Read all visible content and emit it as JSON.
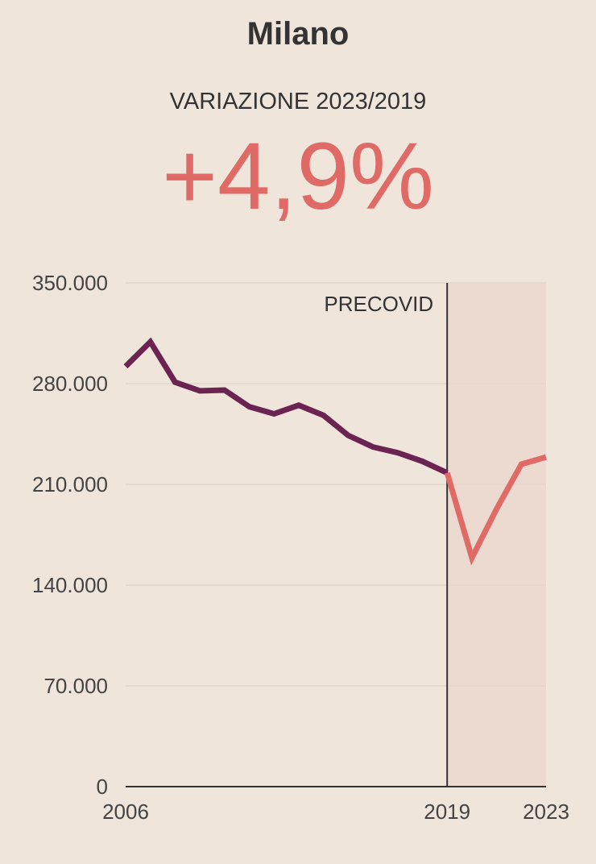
{
  "header": {
    "title": "Milano",
    "subtitle": "VARIAZIONE 2023/2019",
    "change_value": "+4,9%"
  },
  "colors": {
    "background": "#efe5da",
    "precovid_line": "#6b2452",
    "postcovid_line": "#e06a66",
    "shaded_region": "#ecd9cf",
    "gridline": "#e3d6ca",
    "axis": "#333333",
    "headline_value": "#e06a66"
  },
  "chart_data": {
    "type": "line",
    "title": "Milano",
    "subtitle": "VARIAZIONE 2023/2019",
    "xlim": [
      2006,
      2023
    ],
    "ylim": [
      0,
      350000
    ],
    "y_ticks": [
      0,
      70000,
      140000,
      210000,
      280000,
      350000
    ],
    "y_tick_labels": [
      "0",
      "70.000",
      "140.000",
      "210.000",
      "280.000",
      "350.000"
    ],
    "x_ticks": [
      2006,
      2019,
      2023
    ],
    "x_tick_labels": [
      "2006",
      "2019",
      "2023"
    ],
    "grid": true,
    "legend": "none",
    "annotations": [
      {
        "type": "vertical-line",
        "x": 2019,
        "label": "PRECOVID"
      },
      {
        "type": "shaded-region",
        "x_from": 2019,
        "x_to": 2023
      }
    ],
    "series": [
      {
        "x": [
          2006,
          2007,
          2008,
          2009,
          2010,
          2011,
          2012,
          2013,
          2014,
          2015,
          2016,
          2017,
          2018,
          2019
        ],
        "values": [
          292000,
          309000,
          281000,
          275000,
          275500,
          264000,
          259000,
          265000,
          258000,
          244000,
          236000,
          232000,
          226000,
          218000
        ],
        "color": "#6b2452"
      },
      {
        "x": [
          2019,
          2020,
          2021,
          2022,
          2023
        ],
        "values": [
          218000,
          159000,
          193000,
          224000,
          229000
        ],
        "color": "#e06a66"
      }
    ]
  }
}
